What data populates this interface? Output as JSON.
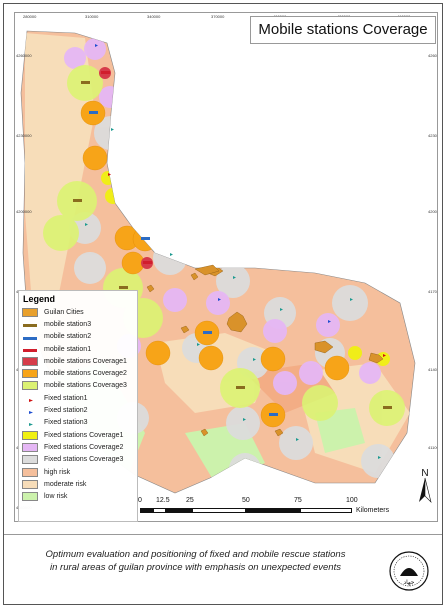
{
  "title": "Mobile stations Coverage",
  "grid": {
    "top_ticks": [
      "280000",
      "310000",
      "340000",
      "370000",
      "400000",
      "430000",
      "460000"
    ],
    "left_ticks": [
      "4260000",
      "4230000",
      "4200000",
      "4170000",
      "4140000",
      "4110000",
      "4080000"
    ]
  },
  "legend": {
    "title": "Legend",
    "items": [
      {
        "label": "Guilan Cities",
        "color": "#e8a02c",
        "kind": "fill"
      },
      {
        "label": "mobile station3",
        "color": "#8a6c1f",
        "kind": "ambulance"
      },
      {
        "label": "mobile station2",
        "color": "#2c6cc4",
        "kind": "ambulance"
      },
      {
        "label": "mobile station1",
        "color": "#d11e2d",
        "kind": "ambulance"
      },
      {
        "label": "mobile stations Coverage1",
        "color": "#d63c4a",
        "kind": "fill"
      },
      {
        "label": "mobile stations Coverage2",
        "color": "#f7a418",
        "kind": "fill"
      },
      {
        "label": "mobile stations Coverage3",
        "color": "#dcf274",
        "kind": "fill"
      },
      {
        "label": "Fixed station1",
        "color": "#d01010",
        "kind": "flag"
      },
      {
        "label": "Fixed station2",
        "color": "#1e4dd0",
        "kind": "flag"
      },
      {
        "label": "Fixed station3",
        "color": "#1e9a90",
        "kind": "flag"
      },
      {
        "label": "Fixed stations Coverage1",
        "color": "#f0f012",
        "kind": "fill"
      },
      {
        "label": "Fixed stations Coverage2",
        "color": "#e5b7f5",
        "kind": "fill"
      },
      {
        "label": "Fixed stations Coverage3",
        "color": "#dcdcdc",
        "kind": "fill"
      },
      {
        "label": "high risk",
        "color": "#f5bf9c",
        "kind": "fill"
      },
      {
        "label": "moderate risk",
        "color": "#f7ddb9",
        "kind": "fill"
      },
      {
        "label": "low risk",
        "color": "#ccf2ac",
        "kind": "fill"
      }
    ]
  },
  "scale": {
    "labels": [
      "0",
      "12.5",
      "25",
      "50",
      "75",
      "100"
    ],
    "unit": "Kilometers"
  },
  "north": "N",
  "caption": {
    "line1": "Optimum evaluation and positioning of fixed and mobile rescue stations",
    "line2": "in rural areas of guilan province with emphasis on unexpected events"
  },
  "logo_text": "جهاد"
}
